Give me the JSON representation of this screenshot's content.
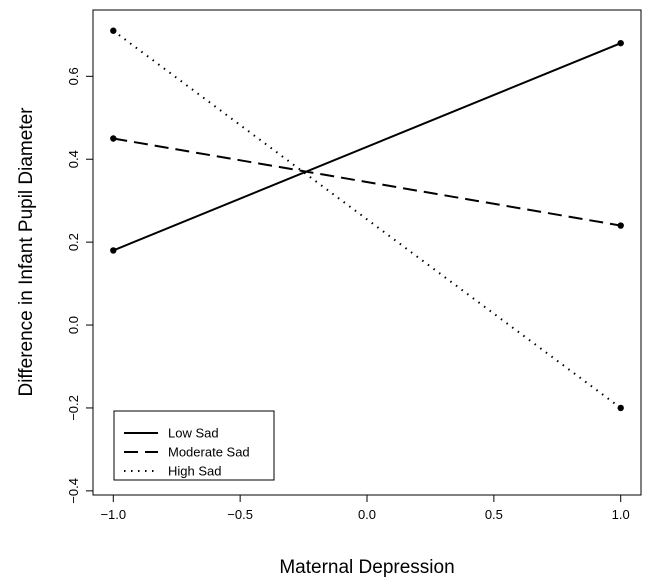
{
  "chart_data": {
    "type": "line",
    "title": "",
    "xlabel": "Maternal Depression",
    "ylabel": "Difference in Infant Pupil Diameter",
    "xlim": [
      -1.08,
      1.08
    ],
    "ylim": [
      -0.41,
      0.76
    ],
    "xticks": [
      -1.0,
      -0.5,
      0.0,
      0.5,
      1.0
    ],
    "xtick_labels": [
      "−1.0",
      "−0.5",
      "0.0",
      "0.5",
      "1.0"
    ],
    "yticks": [
      -0.4,
      -0.2,
      0.0,
      0.2,
      0.4,
      0.6
    ],
    "ytick_labels": [
      "−0.4",
      "−0.2",
      "0.0",
      "0.2",
      "0.4",
      "0.6"
    ],
    "grid": false,
    "legend_position": "bottom-left",
    "x": [
      -1.0,
      1.0
    ],
    "series": [
      {
        "name": "Low Sad",
        "line_style": "solid",
        "values": [
          0.18,
          0.68
        ]
      },
      {
        "name": "Moderate Sad",
        "line_style": "dashed",
        "values": [
          0.45,
          0.24
        ]
      },
      {
        "name": "High Sad",
        "line_style": "dotted",
        "values": [
          0.71,
          -0.2
        ]
      }
    ]
  }
}
